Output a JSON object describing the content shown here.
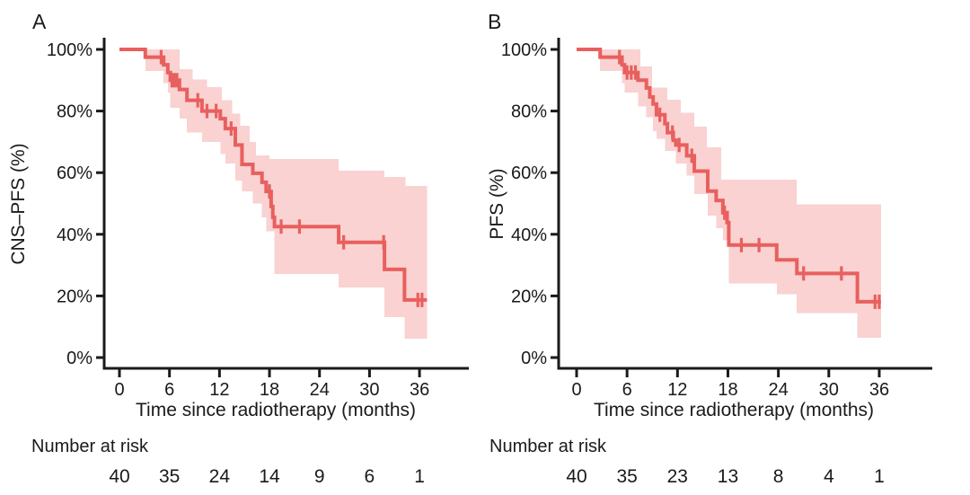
{
  "figure": {
    "kind": "kaplan-meier-survival-figure"
  },
  "colors": {
    "curve": "#e8605e",
    "confidence_band": "#f9d2d1",
    "axis": "#1a1a1a",
    "text": "#1a1a1a",
    "background": "#ffffff"
  },
  "panels": [
    {
      "label": "A",
      "chart_data": {
        "type": "line",
        "subtype": "kaplan-meier-step",
        "title": "",
        "xlabel": "Time since radiotherapy (months)",
        "ylabel": "CNS–PFS (%)",
        "xlim": [
          0,
          38
        ],
        "ylim": [
          0,
          100
        ],
        "xticks": [
          0,
          6,
          12,
          18,
          24,
          30,
          36
        ],
        "yticks": [
          100,
          80,
          60,
          40,
          20,
          0
        ],
        "ytick_labels": [
          "100%",
          "80%",
          "60%",
          "40%",
          "20%",
          "0%"
        ],
        "grid": false,
        "legend": "none",
        "t_end": 36.9,
        "steps": [
          [
            0,
            100
          ],
          [
            3.1,
            97.5
          ],
          [
            5.3,
            95
          ],
          [
            5.8,
            92.5
          ],
          [
            6.1,
            90
          ],
          [
            7.2,
            87
          ],
          [
            8.1,
            83.5
          ],
          [
            9.9,
            80
          ],
          [
            12.1,
            77.5
          ],
          [
            12.7,
            74.3
          ],
          [
            13.9,
            69
          ],
          [
            14.7,
            62.7
          ],
          [
            16.0,
            59.8
          ],
          [
            17.1,
            56.9
          ],
          [
            17.6,
            53.9
          ],
          [
            18.2,
            49
          ],
          [
            18.4,
            45.5
          ],
          [
            18.6,
            42.5
          ],
          [
            26.3,
            37.4
          ],
          [
            31.8,
            28.6
          ],
          [
            34.2,
            18.7
          ]
        ],
        "censor_marks": [
          [
            5.0,
            97.5
          ],
          [
            6.3,
            90
          ],
          [
            6.6,
            90
          ],
          [
            6.9,
            90
          ],
          [
            9.4,
            83.5
          ],
          [
            10.5,
            80
          ],
          [
            11.6,
            80
          ],
          [
            13.4,
            74.3
          ],
          [
            18.0,
            53.9
          ],
          [
            19.4,
            42.5
          ],
          [
            21.6,
            42.5
          ],
          [
            26.9,
            37.4
          ],
          [
            31.7,
            37.4
          ],
          [
            35.8,
            18.7
          ],
          [
            36.3,
            18.7
          ]
        ],
        "ci_upper": [
          [
            3.1,
            100
          ],
          [
            7.2,
            93.6
          ],
          [
            8.8,
            90.3
          ],
          [
            10.5,
            87.8
          ],
          [
            12.3,
            83.5
          ],
          [
            13.5,
            79.1
          ],
          [
            14.5,
            75.2
          ],
          [
            15.6,
            69.9
          ],
          [
            16.4,
            65.6
          ],
          [
            18.0,
            64.4
          ],
          [
            26.3,
            60.6
          ],
          [
            31.8,
            58.6
          ],
          [
            34.3,
            55.7
          ]
        ],
        "ci_lower": [
          [
            3.1,
            93
          ],
          [
            5.3,
            89
          ],
          [
            5.8,
            86
          ],
          [
            6.1,
            81
          ],
          [
            7.2,
            77.5
          ],
          [
            8.1,
            73
          ],
          [
            9.9,
            70
          ],
          [
            12.1,
            66
          ],
          [
            12.7,
            63
          ],
          [
            13.9,
            57.5
          ],
          [
            14.7,
            54
          ],
          [
            16.0,
            50
          ],
          [
            17.1,
            45.5
          ],
          [
            17.6,
            41
          ],
          [
            18.6,
            27.1
          ],
          [
            26.3,
            22.7
          ],
          [
            31.8,
            13.1
          ],
          [
            34.2,
            6.1
          ]
        ],
        "risk": {
          "label": "Number at risk",
          "times": [
            0,
            6,
            12,
            18,
            24,
            30,
            36
          ],
          "counts": [
            40,
            35,
            24,
            14,
            9,
            6,
            1
          ]
        }
      }
    },
    {
      "label": "B",
      "chart_data": {
        "type": "line",
        "subtype": "kaplan-meier-step",
        "title": "",
        "xlabel": "Time since radiotherapy (months)",
        "ylabel": "PFS (%)",
        "xlim": [
          0,
          38
        ],
        "ylim": [
          0,
          100
        ],
        "xticks": [
          0,
          6,
          12,
          18,
          24,
          30,
          36
        ],
        "yticks": [
          100,
          80,
          60,
          40,
          20,
          0
        ],
        "ytick_labels": [
          "100%",
          "80%",
          "60%",
          "40%",
          "20%",
          "0%"
        ],
        "grid": false,
        "legend": "none",
        "t_end": 36.2,
        "steps": [
          [
            0,
            100
          ],
          [
            2.8,
            97.5
          ],
          [
            5.4,
            95
          ],
          [
            5.7,
            92.5
          ],
          [
            7.3,
            90
          ],
          [
            8.3,
            87.5
          ],
          [
            8.7,
            84.6
          ],
          [
            9.1,
            82.3
          ],
          [
            9.5,
            78.8
          ],
          [
            10.5,
            75.9
          ],
          [
            10.8,
            73
          ],
          [
            11.5,
            70.5
          ],
          [
            11.8,
            69
          ],
          [
            13.1,
            65.5
          ],
          [
            14.0,
            60.5
          ],
          [
            15.6,
            54
          ],
          [
            16.6,
            51
          ],
          [
            17.4,
            47
          ],
          [
            17.9,
            43.8
          ],
          [
            18.1,
            36.5
          ],
          [
            23.8,
            31.7
          ],
          [
            26.2,
            27.3
          ],
          [
            33.4,
            18.1
          ]
        ],
        "censor_marks": [
          [
            5.1,
            97.5
          ],
          [
            6.0,
            92.5
          ],
          [
            6.5,
            92.5
          ],
          [
            7.0,
            92.5
          ],
          [
            9.9,
            78.8
          ],
          [
            11.4,
            73
          ],
          [
            12.2,
            69
          ],
          [
            13.7,
            65.5
          ],
          [
            17.6,
            47
          ],
          [
            19.6,
            36.5
          ],
          [
            21.7,
            36.5
          ],
          [
            27.0,
            27.3
          ],
          [
            31.5,
            27.3
          ],
          [
            35.5,
            18.1
          ],
          [
            36.0,
            18.1
          ]
        ],
        "ci_upper": [
          [
            2.8,
            100
          ],
          [
            7.6,
            94.4
          ],
          [
            9.0,
            87.6
          ],
          [
            10.8,
            83.7
          ],
          [
            12.4,
            79.4
          ],
          [
            14.0,
            75.0
          ],
          [
            15.5,
            68.2
          ],
          [
            17.2,
            57.7
          ],
          [
            26.2,
            49.7
          ]
        ],
        "ci_lower": [
          [
            2.8,
            93
          ],
          [
            5.4,
            89
          ],
          [
            5.7,
            86
          ],
          [
            7.3,
            81.5
          ],
          [
            8.3,
            78
          ],
          [
            9.1,
            73.5
          ],
          [
            9.5,
            71
          ],
          [
            10.5,
            67
          ],
          [
            11.8,
            63
          ],
          [
            13.1,
            59
          ],
          [
            14.0,
            53
          ],
          [
            15.6,
            46
          ],
          [
            16.6,
            42
          ],
          [
            17.4,
            38
          ],
          [
            18.1,
            24
          ],
          [
            23.8,
            20.5
          ],
          [
            26.2,
            14.5
          ],
          [
            33.4,
            6.4
          ]
        ],
        "risk": {
          "label": "Number at risk",
          "times": [
            0,
            6,
            12,
            18,
            24,
            30,
            36
          ],
          "counts": [
            40,
            35,
            23,
            13,
            8,
            4,
            1
          ]
        }
      }
    }
  ]
}
